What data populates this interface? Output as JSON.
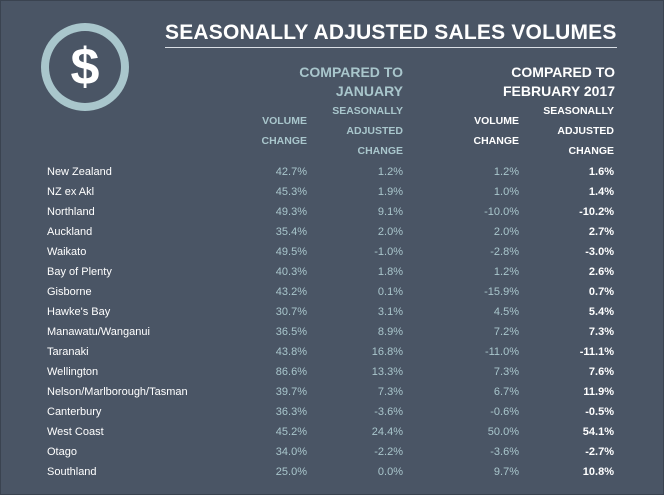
{
  "logo_symbol": "$",
  "title": "SEASONALLY ADJUSTED SALES VOLUMES",
  "groups": [
    {
      "line1": "COMPARED TO",
      "line2": "JANUARY"
    },
    {
      "line1": "COMPARED TO",
      "line2": "FEBRUARY 2017"
    }
  ],
  "columns": [
    {
      "lines": [
        "VOLUME",
        "CHANGE"
      ]
    },
    {
      "lines": [
        "SEASONALLY",
        "ADJUSTED",
        "CHANGE"
      ]
    },
    {
      "lines": [
        "VOLUME",
        "CHANGE"
      ]
    },
    {
      "lines": [
        "SEASONALLY",
        "ADJUSTED",
        "CHANGE"
      ]
    }
  ],
  "colors": {
    "background": "#4a5565",
    "accent": "#a9c6cc",
    "text": "#ffffff"
  },
  "chart_data": {
    "type": "table",
    "title": "SEASONALLY ADJUSTED SALES VOLUMES",
    "column_groups": [
      "COMPARED TO JANUARY",
      "COMPARED TO FEBRUARY 2017"
    ],
    "columns": [
      "VOLUME CHANGE",
      "SEASONALLY ADJUSTED CHANGE",
      "VOLUME CHANGE",
      "SEASONALLY ADJUSTED CHANGE"
    ],
    "rows": [
      {
        "region": "New Zealand",
        "values": [
          "42.7%",
          "1.2%",
          "1.2%",
          "1.6%"
        ]
      },
      {
        "region": "NZ ex Akl",
        "values": [
          "45.3%",
          "1.9%",
          "1.0%",
          "1.4%"
        ]
      },
      {
        "region": "Northland",
        "values": [
          "49.3%",
          "9.1%",
          "-10.0%",
          "-10.2%"
        ]
      },
      {
        "region": "Auckland",
        "values": [
          "35.4%",
          "2.0%",
          "2.0%",
          "2.7%"
        ]
      },
      {
        "region": "Waikato",
        "values": [
          "49.5%",
          "-1.0%",
          "-2.8%",
          "-3.0%"
        ]
      },
      {
        "region": "Bay of Plenty",
        "values": [
          "40.3%",
          "1.8%",
          "1.2%",
          "2.6%"
        ]
      },
      {
        "region": "Gisborne",
        "values": [
          "43.2%",
          "0.1%",
          "-15.9%",
          "0.7%"
        ]
      },
      {
        "region": "Hawke's Bay",
        "values": [
          "30.7%",
          "3.1%",
          "4.5%",
          "5.4%"
        ]
      },
      {
        "region": "Manawatu/Wanganui",
        "values": [
          "36.5%",
          "8.9%",
          "7.2%",
          "7.3%"
        ]
      },
      {
        "region": "Taranaki",
        "values": [
          "43.8%",
          "16.8%",
          "-11.0%",
          "-11.1%"
        ]
      },
      {
        "region": "Wellington",
        "values": [
          "86.6%",
          "13.3%",
          "7.3%",
          "7.6%"
        ]
      },
      {
        "region": "Nelson/Marlborough/Tasman",
        "values": [
          "39.7%",
          "7.3%",
          "6.7%",
          "11.9%"
        ]
      },
      {
        "region": "Canterbury",
        "values": [
          "36.3%",
          "-3.6%",
          "-0.6%",
          "-0.5%"
        ]
      },
      {
        "region": "West Coast",
        "values": [
          "45.2%",
          "24.4%",
          "50.0%",
          "54.1%"
        ]
      },
      {
        "region": "Otago",
        "values": [
          "34.0%",
          "-2.2%",
          "-3.6%",
          "-2.7%"
        ]
      },
      {
        "region": "Southland",
        "values": [
          "25.0%",
          "0.0%",
          "9.7%",
          "10.8%"
        ]
      }
    ]
  }
}
